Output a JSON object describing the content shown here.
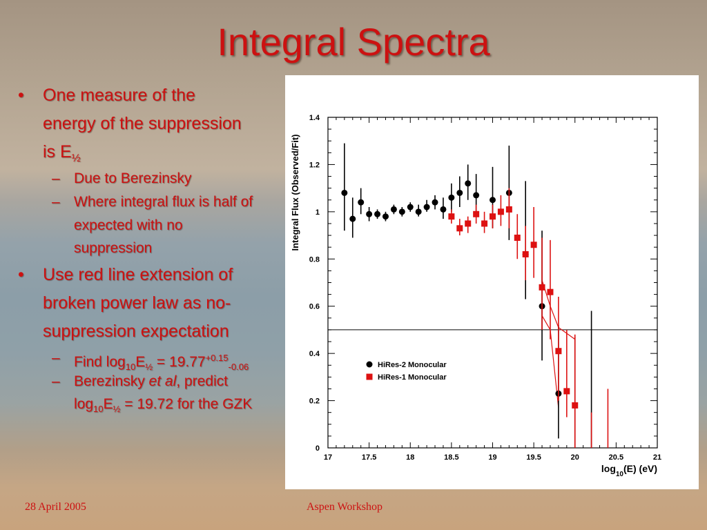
{
  "slide": {
    "title": "Integral Spectra",
    "footer_date": "28 April 2005",
    "footer_center": "Aspen Workshop",
    "accent_color": "#cc1111"
  },
  "bullets": {
    "b1": {
      "marker": "•",
      "line1": "One measure of the",
      "line2": "energy of the suppression",
      "line3_prefix": "is E",
      "line3_sub": "½"
    },
    "b1a": {
      "marker": "–",
      "text": "Due to  Berezinsky"
    },
    "b1b": {
      "marker": "–",
      "line1": "Where integral flux is half of",
      "line2": "expected with no",
      "line3": "suppression"
    },
    "b2": {
      "marker": "•",
      "line1": "Use red line extension of",
      "line2": "broken power law as no-",
      "line3": "suppression expectation"
    },
    "b2a": {
      "marker": "–",
      "p1": "Find log",
      "s1": "10",
      "p2": "E",
      "s2": "½",
      "p3": " = 19.77",
      "sup": "+0.15",
      "sub": "-0.06"
    },
    "b2b": {
      "marker": "–",
      "p1": "Berezinsky ",
      "italic": "et al",
      "p2": ", predict",
      "l2p1": "log",
      "l2s1": "10",
      "l2p2": "E",
      "l2s2": "½",
      "l2p3": " = 19.72 for the GZK"
    }
  },
  "chart_data": {
    "type": "scatter",
    "ylabel": "Integral Flux (Observed/Fit)",
    "xlabel_parts": {
      "pre": "log",
      "sub": "10",
      "post": "(E) (eV)"
    },
    "xlim": [
      17,
      21
    ],
    "ylim": [
      0,
      1.4
    ],
    "xticks": [
      17,
      17.5,
      18,
      18.5,
      19,
      19.5,
      20,
      20.5,
      21
    ],
    "xtick_labels": [
      "17",
      "17.5",
      "18",
      "18.5",
      "19",
      "19.5",
      "20",
      "20.5",
      "21"
    ],
    "yticks": [
      0,
      0.2,
      0.4,
      0.6,
      0.8,
      1.0,
      1.2,
      1.4
    ],
    "ytick_labels": [
      "0",
      "0.2",
      "0.4",
      "0.6",
      "0.8",
      "1",
      "1.2",
      "1.4"
    ],
    "reference_line_y": 0.5,
    "legend_position": "bottom-left",
    "series": [
      {
        "name": "HiRes-2 Monocular",
        "marker": "circle",
        "color": "#000000",
        "points": [
          {
            "x": 17.2,
            "y": 1.08,
            "lo": 0.92,
            "hi": 1.29
          },
          {
            "x": 17.3,
            "y": 0.97,
            "lo": 0.89,
            "hi": 1.06
          },
          {
            "x": 17.4,
            "y": 1.04,
            "lo": 0.99,
            "hi": 1.1
          },
          {
            "x": 17.5,
            "y": 0.99,
            "lo": 0.96,
            "hi": 1.02
          },
          {
            "x": 17.6,
            "y": 0.99,
            "lo": 0.97,
            "hi": 1.01
          },
          {
            "x": 17.7,
            "y": 0.98,
            "lo": 0.96,
            "hi": 1.0
          },
          {
            "x": 17.8,
            "y": 1.01,
            "lo": 0.99,
            "hi": 1.03
          },
          {
            "x": 17.9,
            "y": 1.0,
            "lo": 0.98,
            "hi": 1.02
          },
          {
            "x": 18.0,
            "y": 1.02,
            "lo": 1.0,
            "hi": 1.04
          },
          {
            "x": 18.1,
            "y": 1.0,
            "lo": 0.98,
            "hi": 1.03
          },
          {
            "x": 18.2,
            "y": 1.02,
            "lo": 1.0,
            "hi": 1.05
          },
          {
            "x": 18.3,
            "y": 1.04,
            "lo": 1.01,
            "hi": 1.07
          },
          {
            "x": 18.4,
            "y": 1.01,
            "lo": 0.97,
            "hi": 1.06
          },
          {
            "x": 18.5,
            "y": 1.06,
            "lo": 1.0,
            "hi": 1.12
          },
          {
            "x": 18.6,
            "y": 1.08,
            "lo": 1.02,
            "hi": 1.15
          },
          {
            "x": 18.7,
            "y": 1.12,
            "lo": 1.05,
            "hi": 1.2
          },
          {
            "x": 18.8,
            "y": 1.07,
            "lo": 0.99,
            "hi": 1.16
          },
          {
            "x": 19.0,
            "y": 1.05,
            "lo": 0.93,
            "hi": 1.19
          },
          {
            "x": 19.2,
            "y": 1.08,
            "lo": 0.88,
            "hi": 1.28
          },
          {
            "x": 19.4,
            "y": 0.82,
            "lo": 0.63,
            "hi": 1.13
          },
          {
            "x": 19.6,
            "y": 0.6,
            "lo": 0.37,
            "hi": 0.92
          },
          {
            "x": 19.8,
            "y": 0.23,
            "lo": 0.04,
            "hi": 0.52
          },
          {
            "x": 20.0,
            "y": 0.0,
            "lo": 0.0,
            "hi": 0.47
          },
          {
            "x": 20.2,
            "y": 0.0,
            "lo": 0.0,
            "hi": 0.58
          }
        ]
      },
      {
        "name": "HiRes-1 Monocular",
        "marker": "square",
        "color": "#dd1111",
        "points": [
          {
            "x": 18.5,
            "y": 0.98,
            "lo": 0.95,
            "hi": 1.01
          },
          {
            "x": 18.6,
            "y": 0.93,
            "lo": 0.9,
            "hi": 0.97
          },
          {
            "x": 18.7,
            "y": 0.95,
            "lo": 0.91,
            "hi": 0.98
          },
          {
            "x": 18.8,
            "y": 0.99,
            "lo": 0.95,
            "hi": 1.03
          },
          {
            "x": 18.9,
            "y": 0.95,
            "lo": 0.91,
            "hi": 1.0
          },
          {
            "x": 19.0,
            "y": 0.98,
            "lo": 0.93,
            "hi": 1.03
          },
          {
            "x": 19.1,
            "y": 1.0,
            "lo": 0.94,
            "hi": 1.07
          },
          {
            "x": 19.2,
            "y": 1.01,
            "lo": 0.93,
            "hi": 1.1
          },
          {
            "x": 19.3,
            "y": 0.89,
            "lo": 0.8,
            "hi": 0.99
          },
          {
            "x": 19.4,
            "y": 0.82,
            "lo": 0.71,
            "hi": 0.94
          },
          {
            "x": 19.5,
            "y": 0.86,
            "lo": 0.72,
            "hi": 1.02
          },
          {
            "x": 19.6,
            "y": 0.68,
            "lo": 0.5,
            "hi": 0.89
          },
          {
            "x": 19.7,
            "y": 0.66,
            "lo": 0.46,
            "hi": 0.88
          },
          {
            "x": 19.8,
            "y": 0.41,
            "lo": 0.2,
            "hi": 0.64
          },
          {
            "x": 19.9,
            "y": 0.24,
            "lo": 0.13,
            "hi": 0.5
          },
          {
            "x": 20.0,
            "y": 0.18,
            "lo": 0.0,
            "hi": 0.48
          },
          {
            "x": 20.2,
            "y": 0.0,
            "lo": 0.0,
            "hi": 0.15
          },
          {
            "x": 20.4,
            "y": 0.0,
            "lo": 0.0,
            "hi": 0.25
          }
        ]
      }
    ],
    "envelope_lines": {
      "color": "#dd1111",
      "lines": [
        [
          [
            19.6,
            0.71
          ],
          [
            19.7,
            0.6
          ],
          [
            19.8,
            0.51
          ],
          [
            20.0,
            0.46
          ]
        ],
        [
          [
            19.6,
            0.56
          ],
          [
            19.7,
            0.5
          ],
          [
            19.8,
            0.17
          ]
        ]
      ]
    }
  }
}
